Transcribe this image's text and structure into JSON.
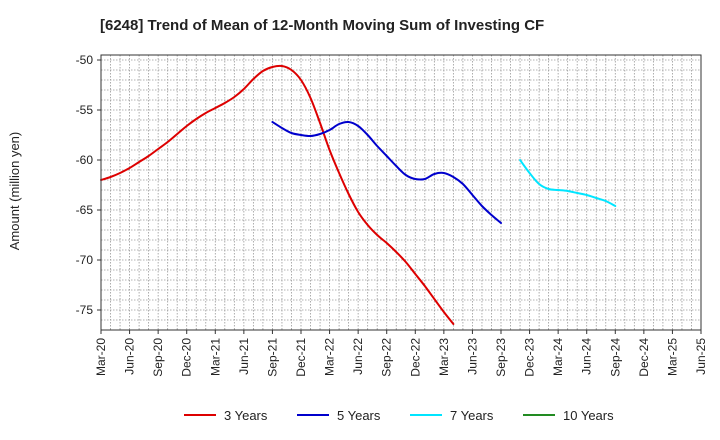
{
  "chart_data": {
    "type": "line",
    "title": "[6248]  Trend of Mean of 12-Month Moving Sum of Investing CF",
    "xlabel": "",
    "ylabel": "Amount (million yen)",
    "ylim": [
      -77,
      -49.5
    ],
    "yticks": [
      -50,
      -55,
      -60,
      -65,
      -70,
      -75
    ],
    "x_labels": [
      "Mar-20",
      "Jun-20",
      "Sep-20",
      "Dec-20",
      "Mar-21",
      "Jun-21",
      "Sep-21",
      "Dec-21",
      "Mar-22",
      "Jun-22",
      "Sep-22",
      "Dec-22",
      "Mar-23",
      "Jun-23",
      "Sep-23",
      "Dec-23",
      "Mar-24",
      "Jun-24",
      "Sep-24",
      "Dec-24",
      "Mar-25",
      "Jun-25"
    ],
    "grid": true,
    "legend_position": "bottom",
    "series": [
      {
        "name": "3 Years",
        "color": "#dd0000",
        "start_index": 0,
        "values": [
          -62.0,
          -61.7,
          -61.3,
          -60.8,
          -60.2,
          -59.6,
          -58.9,
          -58.2,
          -57.4,
          -56.6,
          -55.9,
          -55.3,
          -54.8,
          -54.3,
          -53.7,
          -52.9,
          -51.9,
          -51.1,
          -50.7,
          -50.6,
          -51.0,
          -52.0,
          -53.8,
          -56.3,
          -59.0,
          -61.3,
          -63.4,
          -65.2,
          -66.5,
          -67.5,
          -68.3,
          -69.2,
          -70.2,
          -71.4,
          -72.6,
          -73.9,
          -75.2,
          -76.4
        ]
      },
      {
        "name": "5 Years",
        "color": "#0000cc",
        "start_index": 18,
        "values": [
          -56.2,
          -56.8,
          -57.3,
          -57.5,
          -57.6,
          -57.4,
          -57.0,
          -56.4,
          -56.2,
          -56.6,
          -57.5,
          -58.6,
          -59.6,
          -60.6,
          -61.5,
          -61.9,
          -61.9,
          -61.4,
          -61.3,
          -61.7,
          -62.4,
          -63.5,
          -64.6,
          -65.5,
          -66.3
        ]
      },
      {
        "name": "7 Years",
        "color": "#00e5ff",
        "start_index": 44,
        "values": [
          -60.0,
          -61.3,
          -62.4,
          -62.9,
          -63.0,
          -63.1,
          -63.3,
          -63.5,
          -63.8,
          -64.1,
          -64.6
        ]
      },
      {
        "name": "10 Years",
        "color": "#228b22",
        "start_index": 0,
        "values": []
      }
    ]
  }
}
